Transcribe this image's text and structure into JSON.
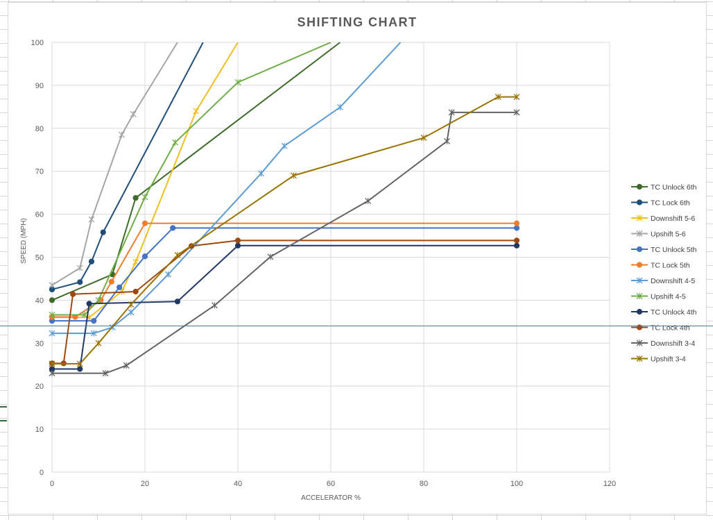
{
  "chart_data": {
    "type": "line",
    "title": "SHIFTING CHART",
    "xlabel": "ACCELERATOR %",
    "ylabel": "SPEED (MPH)",
    "xlim": [
      0,
      120
    ],
    "ylim": [
      0,
      100
    ],
    "xticks": [
      0,
      20,
      40,
      60,
      80,
      100,
      120
    ],
    "yticks": [
      0,
      10,
      20,
      30,
      40,
      50,
      60,
      70,
      80,
      90,
      100
    ],
    "grid": true,
    "legend_position": "right",
    "series": [
      {
        "name": "TC Unlock 6th",
        "color": "#3f6b2a",
        "marker": "circle",
        "points": [
          [
            0,
            40
          ],
          [
            13,
            46
          ],
          [
            18,
            63.8
          ],
          [
            62,
            100
          ]
        ]
      },
      {
        "name": "TC Lock 6th",
        "color": "#1f4e79",
        "marker": "circle",
        "points": [
          [
            0,
            42.5
          ],
          [
            6,
            44.2
          ],
          [
            8.5,
            49
          ],
          [
            11,
            55.8
          ],
          [
            32.5,
            100
          ]
        ]
      },
      {
        "name": "Downshift 5-6",
        "color": "#f0c020",
        "marker": "x",
        "points": [
          [
            0,
            36
          ],
          [
            8,
            36
          ],
          [
            15,
            42
          ],
          [
            18,
            48.9
          ],
          [
            31,
            84
          ],
          [
            40,
            100
          ]
        ]
      },
      {
        "name": "Upshift 5-6",
        "color": "#a5a5a5",
        "marker": "x",
        "points": [
          [
            0,
            43.5
          ],
          [
            6,
            47.5
          ],
          [
            8.5,
            58.8
          ],
          [
            15,
            78.5
          ],
          [
            17.5,
            83.3
          ],
          [
            27,
            100
          ]
        ]
      },
      {
        "name": "TC Unlock 5th",
        "color": "#4472c4",
        "marker": "circle",
        "points": [
          [
            0,
            35.2
          ],
          [
            9,
            35.2
          ],
          [
            14.5,
            43
          ],
          [
            20,
            50.2
          ],
          [
            26,
            56.8
          ],
          [
            100,
            56.8
          ]
        ]
      },
      {
        "name": "TC Lock 5th",
        "color": "#ed7d31",
        "marker": "circle",
        "points": [
          [
            0,
            36.1
          ],
          [
            5,
            36.1
          ],
          [
            10.5,
            40
          ],
          [
            12.8,
            44.3
          ],
          [
            20,
            57.9
          ],
          [
            100,
            57.9
          ]
        ]
      },
      {
        "name": "Downshift 4-5",
        "color": "#5b9bd5",
        "marker": "x",
        "points": [
          [
            0,
            32.3
          ],
          [
            9,
            32.3
          ],
          [
            13,
            33.7
          ],
          [
            17,
            37.2
          ],
          [
            25,
            46
          ],
          [
            45,
            69.5
          ],
          [
            50,
            75.9
          ],
          [
            62,
            84.9
          ],
          [
            75,
            100
          ]
        ]
      },
      {
        "name": "Upshift 4-5",
        "color": "#70ad47",
        "marker": "x",
        "points": [
          [
            0,
            36.6
          ],
          [
            7,
            36.6
          ],
          [
            10,
            40
          ],
          [
            20,
            64
          ],
          [
            26.5,
            76.7
          ],
          [
            40,
            90.7
          ],
          [
            60,
            100
          ]
        ]
      },
      {
        "name": "TC Unlock 4th",
        "color": "#203864",
        "marker": "circle",
        "points": [
          [
            0,
            24
          ],
          [
            6,
            24
          ],
          [
            8,
            39.2
          ],
          [
            27,
            39.7
          ],
          [
            40,
            52.7
          ],
          [
            100,
            52.7
          ]
        ]
      },
      {
        "name": "TC Lock 4th",
        "color": "#9e480e",
        "marker": "circle",
        "points": [
          [
            0,
            25.3
          ],
          [
            2.5,
            25.3
          ],
          [
            4.5,
            41.4
          ],
          [
            18,
            42
          ],
          [
            30,
            52.6
          ],
          [
            40,
            53.9
          ],
          [
            100,
            53.9
          ]
        ]
      },
      {
        "name": "Downshift 3-4",
        "color": "#636363",
        "marker": "x",
        "points": [
          [
            0,
            23
          ],
          [
            11.5,
            23
          ],
          [
            16,
            24.8
          ],
          [
            35,
            38.8
          ],
          [
            47,
            50.1
          ],
          [
            68,
            63.1
          ],
          [
            85,
            77
          ],
          [
            86,
            83.7
          ],
          [
            100,
            83.7
          ]
        ]
      },
      {
        "name": "Upshift 3-4",
        "color": "#997300",
        "marker": "x",
        "points": [
          [
            0,
            25.2
          ],
          [
            6,
            25.2
          ],
          [
            10,
            30
          ],
          [
            17,
            39
          ],
          [
            27,
            50.5
          ],
          [
            52,
            69
          ],
          [
            80,
            77.8
          ],
          [
            96,
            87.3
          ],
          [
            100,
            87.3
          ]
        ]
      }
    ]
  }
}
